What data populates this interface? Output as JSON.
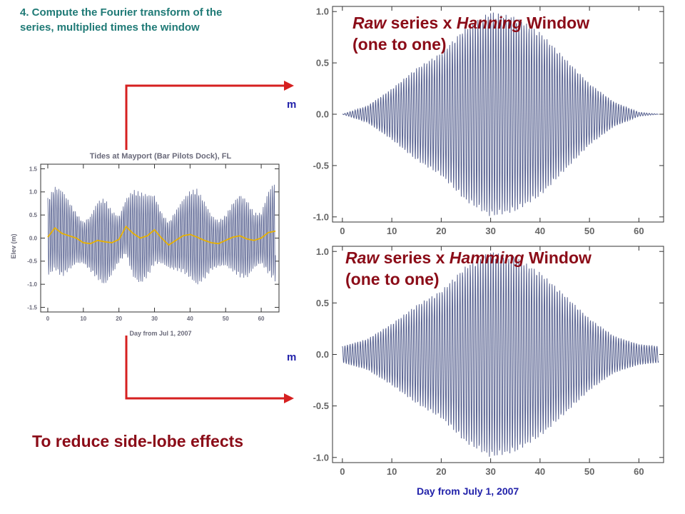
{
  "step_text": "4. Compute the Fourier transform of the series, multiplied times the window",
  "reduce_text": "To reduce side-lobe effects",
  "bottom_xlabel": "Day from July 1, 2007",
  "colors": {
    "series": "#56608f",
    "lowpass": "#e8b100",
    "arrow": "#d62020",
    "annotation": "#8b0c18",
    "axis_label": "#2222aa",
    "step_text": "#1f7a76"
  },
  "chart_data": [
    {
      "type": "line",
      "title": "Tides at Mayport (Bar Pilots Dock), FL",
      "xlabel": "Day from Jul 1, 2007",
      "ylabel": "Elev (m)",
      "xlim": [
        -2,
        65
      ],
      "ylim": [
        -1.6,
        1.6
      ],
      "xticks": [
        "0",
        "10",
        "20",
        "30",
        "40",
        "50",
        "60"
      ],
      "yticks": [
        "-1.5",
        "-1.0",
        "-0.5",
        "0.0",
        "0.5",
        "1.0",
        "1.5"
      ],
      "grid": false,
      "series": [
        {
          "values_desc": "tidal elevation",
          "x": [
            0,
            2,
            4,
            6,
            8,
            10,
            12,
            14,
            16,
            18,
            20,
            22,
            24,
            26,
            28,
            30,
            32,
            34,
            36,
            38,
            40,
            42,
            44,
            46,
            48,
            50,
            52,
            54,
            56,
            58,
            60,
            62,
            64
          ],
          "amplitude_envelope": [
            0.85,
            0.9,
            0.95,
            0.75,
            0.55,
            0.45,
            0.6,
            0.85,
            0.95,
            0.7,
            0.5,
            0.6,
            0.95,
            1.0,
            0.9,
            0.75,
            0.55,
            0.5,
            0.65,
            0.8,
            0.95,
            1.05,
            0.85,
            0.6,
            0.5,
            0.55,
            0.75,
            0.9,
            0.85,
            0.6,
            0.55,
            0.9,
            1.1
          ]
        },
        {
          "values_desc": "low-pass mean",
          "x": [
            0,
            2,
            4,
            6,
            8,
            10,
            12,
            14,
            16,
            18,
            20,
            22,
            24,
            26,
            28,
            30,
            32,
            34,
            36,
            38,
            40,
            42,
            44,
            46,
            48,
            50,
            52,
            54,
            56,
            58,
            60,
            62,
            64
          ],
          "values": [
            0.02,
            0.22,
            0.1,
            0.05,
            0.0,
            -0.1,
            -0.12,
            -0.05,
            -0.08,
            -0.1,
            -0.03,
            0.25,
            0.1,
            0.0,
            0.05,
            0.18,
            0.0,
            -0.15,
            -0.05,
            0.05,
            0.08,
            0.02,
            -0.05,
            -0.1,
            -0.12,
            -0.05,
            0.02,
            0.05,
            -0.02,
            -0.05,
            0.0,
            0.12,
            0.15
          ]
        }
      ]
    },
    {
      "type": "line",
      "title": "Raw series x Hanning Window (one to one)",
      "title_prefix": "Raw",
      "title_mid": " series x ",
      "title_window": "Hanning",
      "title_suffix": " Window",
      "title_line2": "(one to one)",
      "ylabel": "m",
      "xlim": [
        -2,
        65
      ],
      "ylim": [
        -1.05,
        1.05
      ],
      "xticks": [
        "0",
        "10",
        "20",
        "30",
        "40",
        "50",
        "60"
      ],
      "yticks": [
        "1.0",
        "0.5",
        "0.0",
        "-0.5",
        "-1.0"
      ],
      "window": "hanning",
      "amplitude_envelope_x": [
        0,
        5,
        10,
        15,
        20,
        25,
        30,
        35,
        40,
        45,
        50,
        55,
        60,
        64
      ],
      "amplitude_envelope": [
        0.0,
        0.08,
        0.25,
        0.45,
        0.6,
        0.85,
        1.0,
        0.95,
        0.8,
        0.55,
        0.3,
        0.12,
        0.02,
        0.0
      ]
    },
    {
      "type": "line",
      "title": "Raw series x Hamming Window (one to one)",
      "title_prefix": "Raw",
      "title_mid": " series x ",
      "title_window": "Hamming",
      "title_suffix": " Window",
      "title_line2": "(one to one)",
      "ylabel": "m",
      "xlim": [
        -2,
        65
      ],
      "ylim": [
        -1.05,
        1.05
      ],
      "xticks": [
        "0",
        "10",
        "20",
        "30",
        "40",
        "50",
        "60"
      ],
      "yticks": [
        "1.0",
        "0.5",
        "0.0",
        "-0.5",
        "-1.0"
      ],
      "window": "hamming",
      "amplitude_envelope_x": [
        0,
        5,
        10,
        15,
        20,
        25,
        30,
        35,
        40,
        45,
        50,
        55,
        60,
        64
      ],
      "amplitude_envelope": [
        0.08,
        0.15,
        0.3,
        0.48,
        0.62,
        0.86,
        1.0,
        0.95,
        0.8,
        0.58,
        0.35,
        0.18,
        0.1,
        0.08
      ]
    }
  ]
}
